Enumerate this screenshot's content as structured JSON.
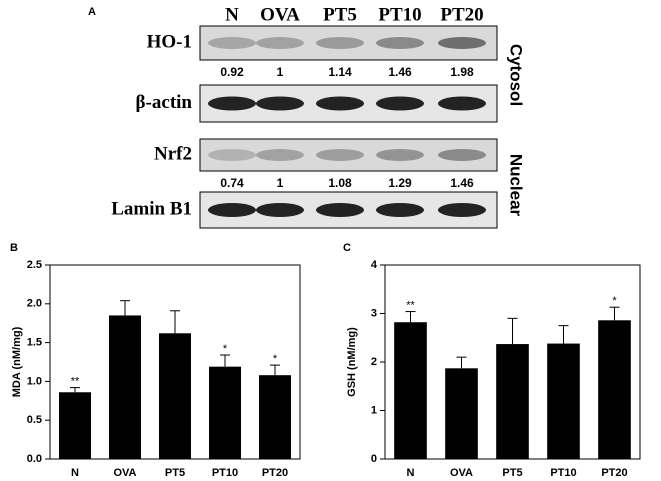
{
  "panel_a": {
    "label": "A",
    "lanes": [
      "N",
      "OVA",
      "PT5",
      "PT10",
      "PT20"
    ],
    "blots": [
      {
        "label": "HO-1",
        "ratios": [
          0.92,
          1,
          1.14,
          1.46,
          1.98
        ]
      },
      {
        "label": "β-actin"
      },
      {
        "label": "Nrf2",
        "ratios": [
          0.74,
          1,
          1.08,
          1.29,
          1.46
        ]
      },
      {
        "label": "Lamin B1"
      }
    ],
    "fractions": [
      "Cytosol",
      "Nuclear"
    ]
  },
  "chart_data": [
    {
      "type": "bar",
      "panel": "B",
      "ylabel": "MDA (nM/mg)",
      "categories": [
        "N",
        "OVA",
        "PT5",
        "PT10",
        "PT20"
      ],
      "values": [
        0.86,
        1.85,
        1.62,
        1.19,
        1.08
      ],
      "errors": [
        0.06,
        0.19,
        0.29,
        0.15,
        0.13
      ],
      "annotations": [
        "**",
        null,
        null,
        "*",
        "*"
      ],
      "color": "#000000",
      "ylim": [
        0,
        2.5
      ],
      "yticks": [
        {
          "value": 0,
          "label": "0.0"
        },
        0.5,
        {
          "value": 1,
          "label": "1.0"
        },
        1.5,
        {
          "value": 2,
          "label": "2.0"
        },
        2.5
      ]
    },
    {
      "type": "bar",
      "panel": "C",
      "ylabel": "GSH (nM/mg)",
      "categories": [
        "N",
        "OVA",
        "PT5",
        "PT10",
        "PT20"
      ],
      "values": [
        2.82,
        1.87,
        2.37,
        2.38,
        2.86
      ],
      "errors": [
        0.22,
        0.23,
        0.53,
        0.37,
        0.27
      ],
      "annotations": [
        "**",
        null,
        null,
        null,
        "*"
      ],
      "color": "#000000",
      "ylim": [
        0,
        4
      ],
      "yticks": [
        0,
        1,
        2,
        3,
        4
      ]
    }
  ]
}
